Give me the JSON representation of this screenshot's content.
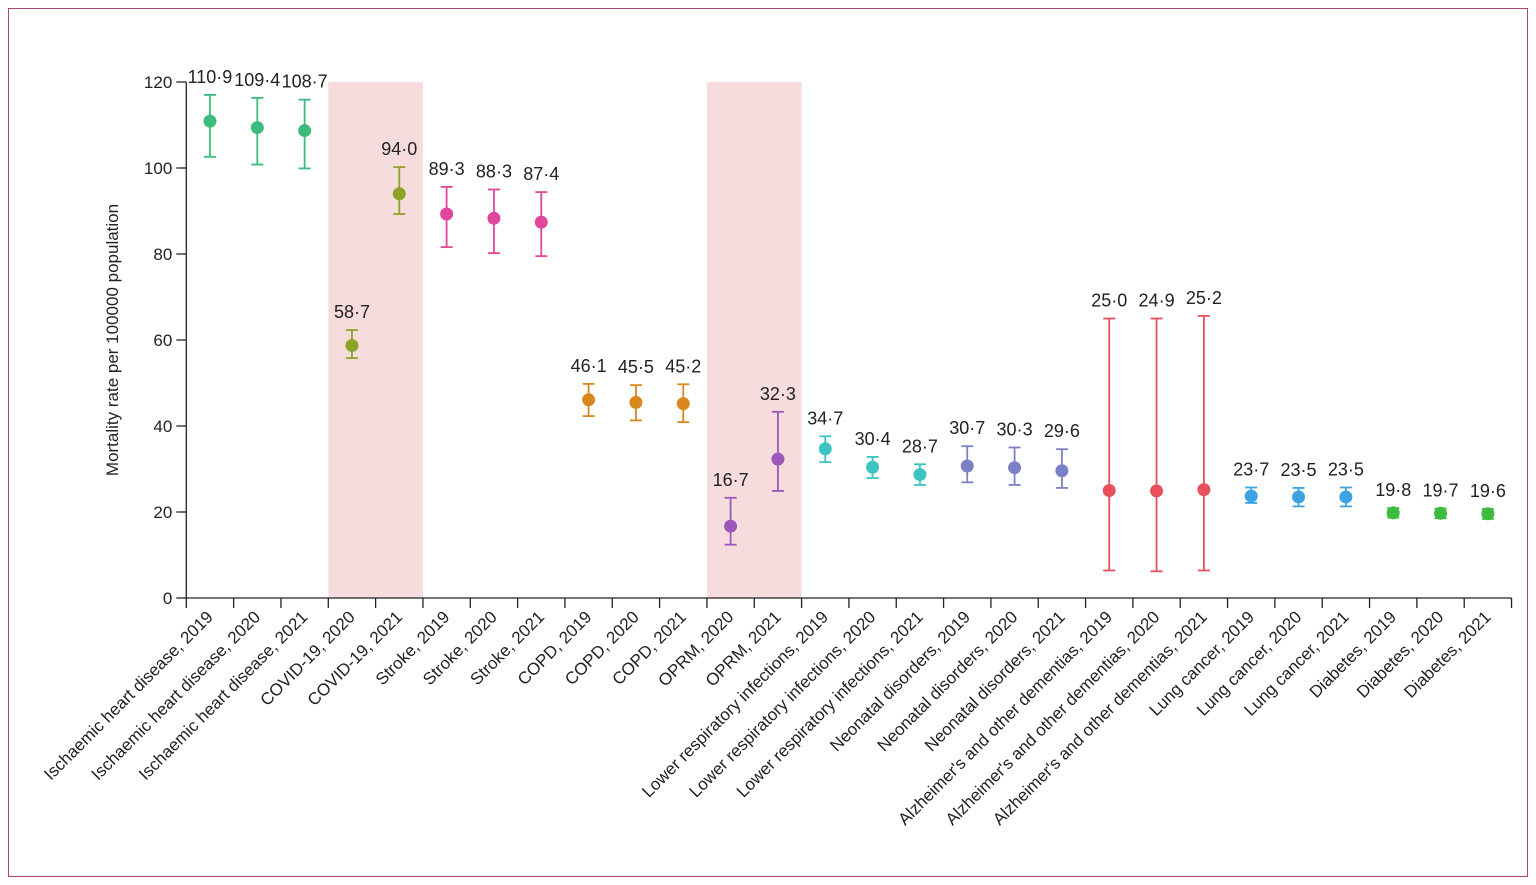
{
  "chart_data": {
    "type": "errorbar",
    "y_label": "Mortality rate per 100000 population",
    "categories": [
      "Ischaemic heart disease, 2019",
      "Ischaemic heart disease, 2020",
      "Ischaemic heart disease, 2021",
      "COVID-19, 2020",
      "COVID-19, 2021",
      "Stroke, 2019",
      "Stroke, 2020",
      "Stroke, 2021",
      "COPD, 2019",
      "COPD, 2020",
      "COPD, 2021",
      "OPRM, 2020",
      "OPRM, 2021",
      "Lower respiratory infections, 2019",
      "Lower respiratory infections, 2020",
      "Lower respiratory infections, 2021",
      "Neonatal disorders, 2019",
      "Neonatal disorders, 2020",
      "Neonatal disorders, 2021",
      "Alzheimer's and other dementias, 2019",
      "Alzheimer's and other dementias, 2020",
      "Alzheimer's and other dementias, 2021",
      "Lung cancer, 2019",
      "Lung cancer, 2020",
      "Lung cancer, 2021",
      "Diabetes, 2019",
      "Diabetes, 2020",
      "Diabetes, 2021"
    ],
    "values": [
      110.9,
      109.4,
      108.7,
      58.7,
      94.0,
      89.3,
      88.3,
      87.4,
      46.1,
      45.5,
      45.2,
      16.7,
      32.3,
      34.7,
      30.4,
      28.7,
      30.7,
      30.3,
      29.6,
      25.0,
      24.9,
      25.2,
      23.7,
      23.5,
      23.5,
      19.8,
      19.7,
      19.6
    ],
    "value_labels": [
      "110·9",
      "109·4",
      "108·7",
      "58·7",
      "94·0",
      "89·3",
      "88·3",
      "87·4",
      "46·1",
      "45·5",
      "45·2",
      "16·7",
      "32·3",
      "34·7",
      "30·4",
      "28·7",
      "30·7",
      "30·3",
      "29·6",
      "25·0",
      "24·9",
      "25·2",
      "23·7",
      "23·5",
      "23·5",
      "19·8",
      "19·7",
      "19·6"
    ],
    "lower": [
      102.6,
      100.8,
      99.9,
      55.8,
      89.3,
      81.6,
      80.2,
      79.5,
      42.3,
      41.3,
      40.9,
      12.4,
      24.9,
      31.6,
      27.9,
      26.3,
      26.9,
      26.3,
      25.6,
      6.4,
      6.2,
      6.4,
      22.1,
      21.3,
      21.3,
      18.7,
      18.6,
      18.4
    ],
    "upper": [
      117.0,
      116.3,
      115.9,
      62.3,
      100.2,
      95.6,
      95.0,
      94.4,
      49.8,
      49.5,
      49.7,
      23.3,
      43.3,
      37.6,
      32.8,
      31.1,
      35.3,
      35.0,
      34.6,
      65.0,
      65.0,
      65.6,
      25.7,
      25.6,
      25.7,
      20.9,
      20.8,
      20.7
    ],
    "colors": [
      "#3dbb7c",
      "#3dbb7c",
      "#3dbb7c",
      "#8fa228",
      "#8fa228",
      "#e0469c",
      "#e0469c",
      "#e0469c",
      "#d8881c",
      "#d8881c",
      "#d8881c",
      "#9c58b8",
      "#9c58b8",
      "#3cc4c0",
      "#3cc4c0",
      "#3cc4c0",
      "#7c80c6",
      "#7c80c6",
      "#7c80c6",
      "#e8505c",
      "#e8505c",
      "#e8505c",
      "#3ca2e2",
      "#3ca2e2",
      "#3ca2e2",
      "#3cbb3c",
      "#3cbb3c",
      "#3cbb3c"
    ],
    "highlight_color": "#f6dcdc",
    "ylim": [
      0,
      120
    ],
    "yticks": [
      0,
      20,
      40,
      60,
      80,
      100,
      120
    ]
  }
}
